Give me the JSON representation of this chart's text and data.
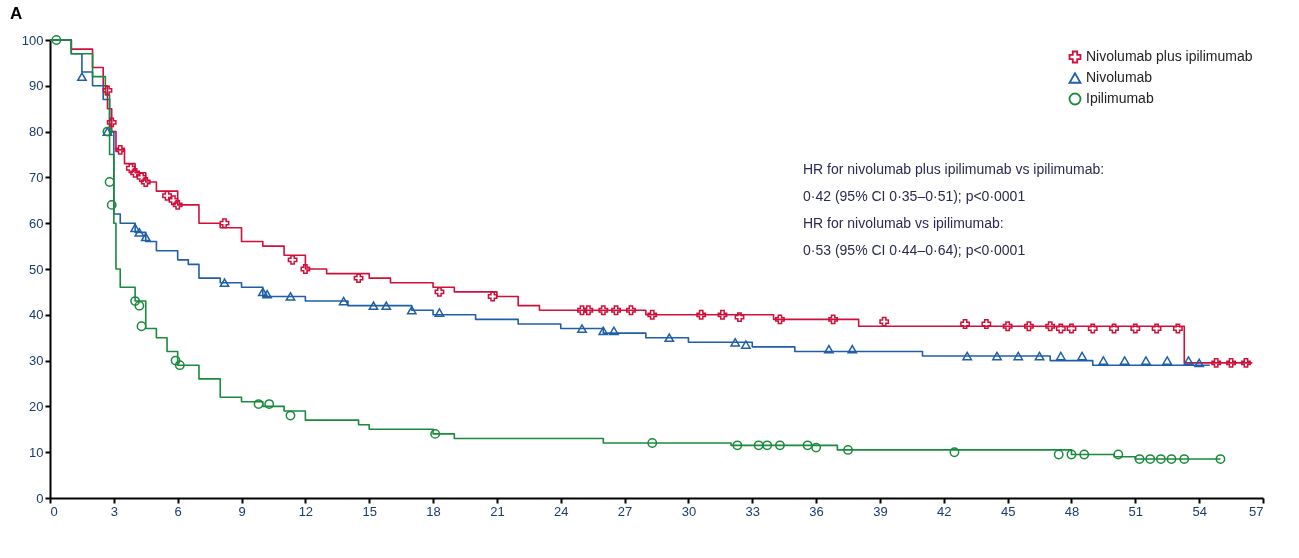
{
  "chart_data": {
    "type": "step",
    "title": "A",
    "xlim": [
      0,
      57
    ],
    "xticks": [
      0,
      3,
      6,
      9,
      12,
      15,
      18,
      21,
      24,
      27,
      30,
      33,
      36,
      39,
      42,
      45,
      48,
      51,
      54,
      57
    ],
    "ylim": [
      0,
      100
    ],
    "yticks": [
      0,
      10,
      20,
      30,
      40,
      50,
      60,
      70,
      80,
      90,
      100
    ],
    "grid": false,
    "legend": "top right",
    "annotations": [
      "HR for nivolumab plus ipilimumab vs ipilimumab:",
      "0·42 (95% CI 0·35–0·51); p<0·0001",
      "HR for nivolumab vs ipilimumab:",
      "0·53 (95% CI 0·44–0·64); p<0·0001"
    ],
    "series": [
      {
        "name": "Nivolumab plus ipilimumab",
        "color": "#d0103a",
        "x": [
          0,
          1,
          2,
          2.5,
          2.7,
          2.9,
          3.1,
          3.5,
          4,
          4.5,
          5,
          6,
          7,
          8,
          9,
          10,
          11,
          12,
          13,
          15,
          16,
          18,
          19,
          21,
          22,
          23,
          28,
          34,
          38,
          53.3,
          56.5
        ],
        "values": [
          100,
          98,
          94,
          90,
          85,
          80,
          76,
          73,
          71,
          69,
          67,
          64,
          60,
          59,
          56,
          55,
          53,
          50,
          49,
          48,
          47,
          46,
          45,
          44,
          42,
          41,
          40,
          39,
          37.5,
          29.5,
          29.5
        ]
      },
      {
        "name": "Nivolumab",
        "color": "#1f5fa8",
        "x": [
          0,
          1,
          1.5,
          2,
          2.5,
          2.8,
          3,
          3.3,
          4,
          4.5,
          5,
          6,
          6.5,
          7,
          8,
          9,
          10,
          12,
          14,
          17,
          18,
          20,
          22,
          24,
          26,
          28,
          30,
          33,
          35,
          41,
          47,
          49,
          54.5
        ],
        "values": [
          100,
          97,
          93,
          90,
          87,
          80,
          62,
          60,
          58,
          56,
          54,
          52,
          51,
          48,
          47,
          46,
          44,
          43,
          42,
          41,
          40,
          39,
          38,
          37,
          36,
          35,
          34,
          33,
          32,
          31,
          30,
          29,
          29
        ]
      },
      {
        "name": "Ipilimumab",
        "color": "#1a8a3c",
        "x": [
          0,
          1,
          2,
          2.6,
          2.8,
          3,
          3.1,
          3.3,
          4,
          4.5,
          5,
          5.5,
          6,
          7,
          8,
          9,
          10,
          11,
          12,
          14.5,
          15,
          18,
          19,
          26,
          32,
          37,
          48,
          50,
          51,
          55
        ],
        "values": [
          100,
          97,
          92,
          88,
          75,
          60,
          50,
          46,
          43,
          37,
          35,
          32,
          29,
          26,
          22,
          21,
          20,
          19,
          17,
          16,
          15,
          14,
          13,
          12,
          11.5,
          10.5,
          9.5,
          9,
          8.5,
          8.5
        ]
      },
      {
        "type": "scatter",
        "color": "#d0103a",
        "marker": "cross",
        "x": [
          2.7,
          2.9,
          3.3,
          3.8,
          4,
          4.3,
          4.5,
          5.5,
          5.8,
          6,
          8.2,
          11.4,
          12,
          14.5,
          18.3,
          20.8,
          25,
          25.3,
          26,
          26.6,
          27.3,
          28.3,
          30.6,
          31.6,
          32.4,
          34.3,
          36.8,
          39.2,
          43,
          44,
          45,
          46,
          47,
          47.5,
          48,
          49,
          50,
          51,
          52,
          53,
          54.8,
          55.5,
          56.2
        ],
        "values": [
          89,
          82,
          76,
          72,
          71,
          70,
          69,
          66,
          65,
          64,
          60,
          52,
          50,
          48,
          45,
          44,
          41,
          41,
          41,
          41,
          41,
          40,
          40,
          40,
          39.5,
          39,
          39,
          38.5,
          38,
          38,
          37.5,
          37.5,
          37.5,
          37,
          37,
          37,
          37,
          37,
          37,
          37,
          29.5,
          29.5,
          29.5
        ]
      },
      {
        "type": "scatter",
        "color": "#1f5fa8",
        "marker": "triangle",
        "x": [
          1.5,
          2.7,
          4,
          4.2,
          4.5,
          8.2,
          10,
          10.2,
          11.3,
          13.8,
          15.2,
          15.8,
          17,
          18.3,
          25,
          26,
          26.5,
          29.1,
          32.2,
          32.7,
          36.6,
          37.7,
          43.1,
          44.5,
          45.5,
          46.5,
          47.5,
          48.5,
          49.5,
          50.5,
          51.5,
          52.5,
          53.5,
          54
        ],
        "values": [
          92,
          80,
          59,
          58,
          57,
          47,
          45,
          44.5,
          44,
          43,
          42,
          42,
          41,
          40.5,
          37,
          36.5,
          36.5,
          35,
          34,
          33.5,
          32.5,
          32.5,
          31,
          31,
          31,
          31,
          31,
          31,
          30,
          30,
          30,
          30,
          30,
          29.5
        ]
      },
      {
        "type": "scatter",
        "color": "#1a8a3c",
        "marker": "circle",
        "x": [
          0.3,
          2.7,
          2.8,
          2.9,
          4,
          4.2,
          4.3,
          5.9,
          6.1,
          9.8,
          10.3,
          11.3,
          18.1,
          28.3,
          32.3,
          33.3,
          33.7,
          34.3,
          35.6,
          36,
          37.5,
          42.5,
          47.4,
          48,
          48.6,
          50.2,
          51.2,
          51.7,
          52.2,
          52.7,
          53.3,
          55
        ],
        "values": [
          100,
          80,
          69,
          64,
          43,
          42,
          37.5,
          30,
          29,
          20.5,
          20.5,
          18,
          14,
          12,
          11.5,
          11.5,
          11.5,
          11.5,
          11.5,
          11,
          10.5,
          10,
          9.5,
          9.5,
          9.5,
          9.5,
          8.5,
          8.5,
          8.5,
          8.5,
          8.5,
          8.5
        ]
      }
    ]
  }
}
